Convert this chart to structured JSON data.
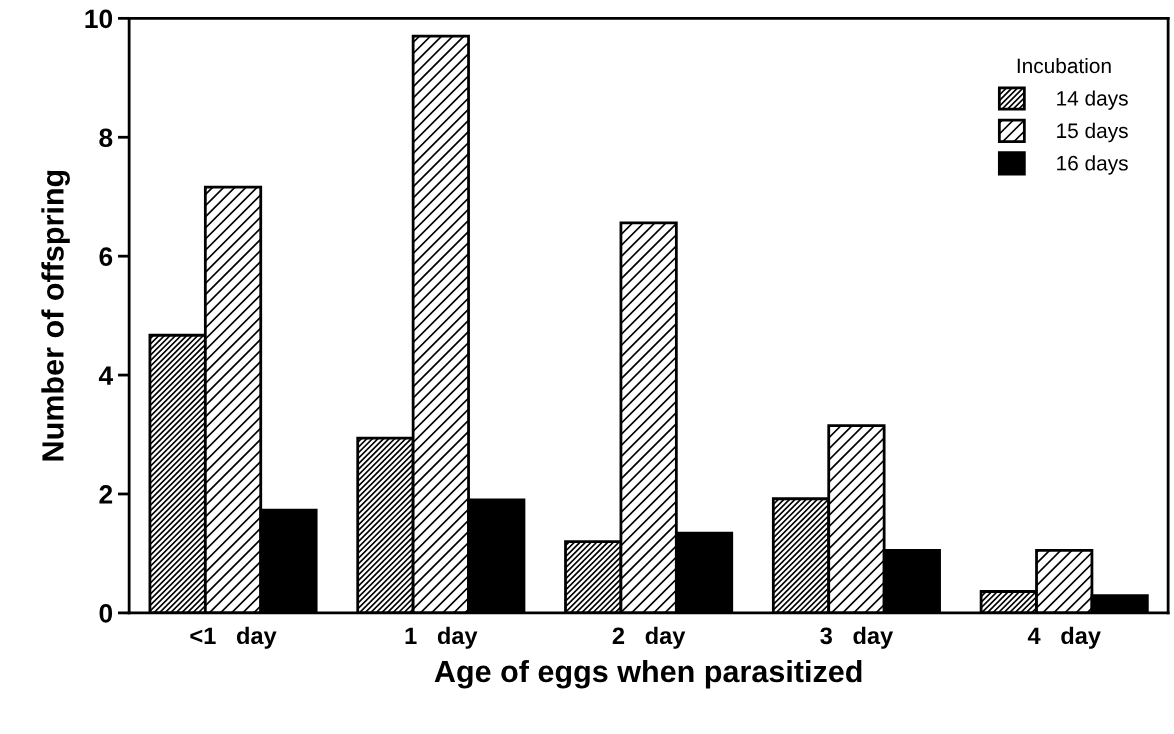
{
  "chart_data": {
    "type": "bar",
    "xlabel": "Age of eggs when parasitized",
    "ylabel": "Number of offspring",
    "legend_title": "Incubation",
    "categories": [
      "<1   day",
      "1   day",
      "2   day",
      "3   day",
      "4   day"
    ],
    "series": [
      {
        "name": "14 days",
        "color": "#000000",
        "values": [
          4.67,
          2.94,
          1.2,
          1.92,
          0.36
        ]
      },
      {
        "name": "15 days",
        "color": "#000000",
        "values": [
          7.16,
          9.7,
          6.56,
          3.15,
          1.05
        ]
      },
      {
        "name": "16 days",
        "color": "#000000",
        "values": [
          1.73,
          1.9,
          1.34,
          1.05,
          0.29
        ]
      }
    ],
    "ylim": [
      0,
      10
    ],
    "yticks": [
      0,
      2,
      4,
      6,
      8,
      10
    ],
    "grid": false,
    "legend": "top right"
  }
}
